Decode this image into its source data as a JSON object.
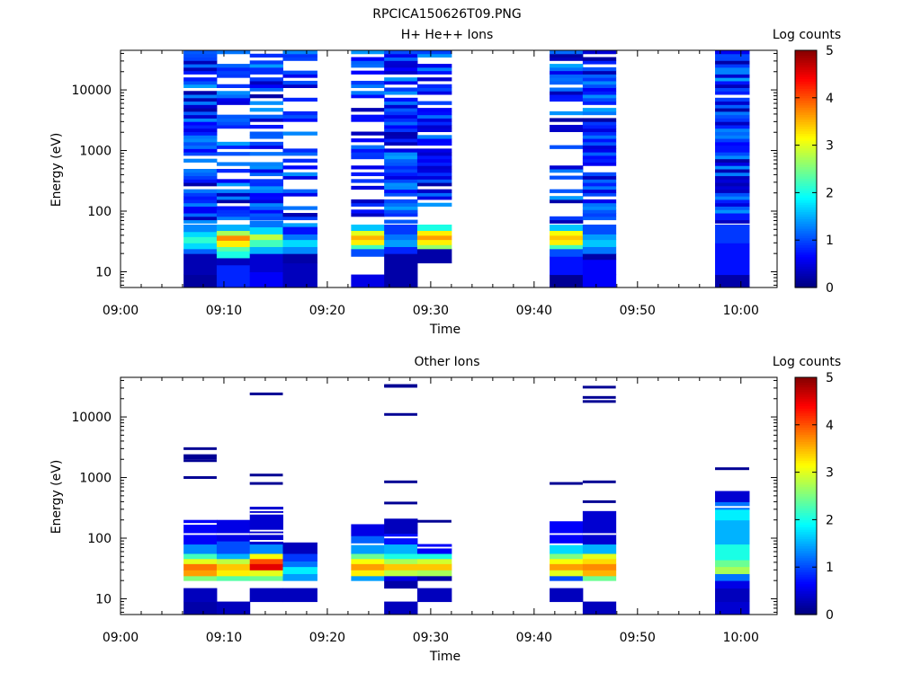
{
  "page_title": "RPCICA150626T09.PNG",
  "chart_data": [
    {
      "type": "heatmap",
      "title": "H+ He++ Ions",
      "xlabel": "Time",
      "ylabel": "Energy (eV)",
      "x_ticks": [
        "09:00",
        "09:10",
        "09:20",
        "09:30",
        "09:40",
        "09:50",
        "10:00"
      ],
      "x_range_minutes": [
        0,
        63.5
      ],
      "y_scale": "log",
      "y_ticks": [
        "10",
        "100",
        "1000",
        "10000"
      ],
      "y_range": [
        5.5,
        45000
      ],
      "colorbar": {
        "label": "Log counts",
        "range": [
          0,
          5
        ],
        "ticks": [
          "0",
          "1",
          "2",
          "3",
          "4",
          "5"
        ],
        "colormap": "jet"
      },
      "columns": [
        {
          "t0": 6.1,
          "t1": 9.3,
          "seed": 11,
          "bands": [
            [
              5.5,
              9,
              0.15
            ],
            [
              9,
              20,
              0.25
            ],
            [
              20,
              24,
              1.1
            ],
            [
              24,
              30,
              1.7
            ],
            [
              30,
              38,
              2.1
            ],
            [
              38,
              46,
              1.7
            ],
            [
              46,
              60,
              1.3
            ]
          ],
          "gaps": 0.12
        },
        {
          "t0": 9.3,
          "t1": 12.5,
          "seed": 23,
          "bands": [
            [
              5.5,
              13,
              0.8
            ],
            [
              13,
              17,
              0.3
            ],
            [
              17,
              22,
              2.0
            ],
            [
              22,
              26,
              2.3
            ],
            [
              26,
              33,
              3.2
            ],
            [
              33,
              40,
              3.7
            ],
            [
              40,
              48,
              2.7
            ],
            [
              48,
              60,
              1.5
            ]
          ],
          "gaps": 0.45
        },
        {
          "t0": 12.5,
          "t1": 15.7,
          "seed": 37,
          "bands": [
            [
              5.5,
              10,
              0.6
            ],
            [
              10,
              20,
              0.4
            ],
            [
              20,
              26,
              1.5
            ],
            [
              26,
              34,
              2.2
            ],
            [
              34,
              42,
              2.8
            ],
            [
              42,
              55,
              1.7
            ],
            [
              55,
              70,
              1.2
            ]
          ],
          "gaps": 0.3
        },
        {
          "t0": 15.7,
          "t1": 19.0,
          "seed": 41,
          "bands": [
            [
              5.5,
              9,
              0.3
            ],
            [
              9,
              14,
              0.3
            ],
            [
              14,
              20,
              0.2
            ],
            [
              20,
              26,
              1.3
            ],
            [
              26,
              34,
              1.7
            ],
            [
              34,
              42,
              1.2
            ],
            [
              42,
              55,
              0.7
            ]
          ],
          "gaps": 0.55
        },
        {
          "t0": 22.3,
          "t1": 25.5,
          "seed": 53,
          "bands": [
            [
              5.5,
              9,
              0.5
            ],
            [
              18,
              24,
              1.0
            ],
            [
              24,
              28,
              2.2
            ],
            [
              28,
              34,
              3.2
            ],
            [
              34,
              40,
              3.5
            ],
            [
              40,
              48,
              3.0
            ],
            [
              48,
              60,
              1.6
            ]
          ],
          "gaps": 0.5
        },
        {
          "t0": 25.5,
          "t1": 28.7,
          "seed": 61,
          "bands": [
            [
              5.5,
              20,
              0.2
            ],
            [
              20,
              26,
              0.8
            ],
            [
              26,
              34,
              1.4
            ],
            [
              34,
              42,
              1.2
            ],
            [
              42,
              60,
              0.9
            ]
          ],
          "gaps": 0.15
        },
        {
          "t0": 28.7,
          "t1": 32.0,
          "seed": 71,
          "bands": [
            [
              14,
              24,
              0.2
            ],
            [
              24,
              28,
              2.6
            ],
            [
              28,
              34,
              3.2
            ],
            [
              34,
              40,
              3.6
            ],
            [
              40,
              48,
              3.2
            ],
            [
              48,
              60,
              2.0
            ]
          ],
          "gaps": 0.35
        },
        {
          "t0": 41.5,
          "t1": 44.7,
          "seed": 83,
          "bands": [
            [
              5.5,
              9,
              0.1
            ],
            [
              9,
              18,
              0.7
            ],
            [
              18,
              24,
              1.0
            ],
            [
              24,
              28,
              2.2
            ],
            [
              28,
              34,
              3.2
            ],
            [
              34,
              40,
              3.4
            ],
            [
              40,
              48,
              3.1
            ],
            [
              48,
              60,
              1.6
            ]
          ],
          "gaps": 0.45
        },
        {
          "t0": 44.7,
          "t1": 47.9,
          "seed": 97,
          "bands": [
            [
              5.5,
              9,
              0.6
            ],
            [
              9,
              16,
              0.6
            ],
            [
              16,
              20,
              0.2
            ],
            [
              20,
              26,
              1.2
            ],
            [
              26,
              34,
              1.6
            ],
            [
              34,
              42,
              1.4
            ],
            [
              42,
              60,
              1.0
            ]
          ],
          "gaps": 0.15
        },
        {
          "t0": 57.5,
          "t1": 60.8,
          "seed": 101,
          "bands": [
            [
              5.5,
              9,
              0.2
            ],
            [
              9,
              30,
              0.7
            ],
            [
              30,
              60,
              0.9
            ]
          ],
          "gaps": 0.05
        }
      ]
    },
    {
      "type": "heatmap",
      "title": "Other Ions",
      "xlabel": "Time",
      "ylabel": "Energy (eV)",
      "x_ticks": [
        "09:00",
        "09:10",
        "09:20",
        "09:30",
        "09:40",
        "09:50",
        "10:00"
      ],
      "x_range_minutes": [
        0,
        63.5
      ],
      "y_scale": "log",
      "y_ticks": [
        "10",
        "100",
        "1000",
        "10000"
      ],
      "y_range": [
        5.5,
        45000
      ],
      "colorbar": {
        "label": "Log counts",
        "range": [
          0,
          5
        ],
        "ticks": [
          "0",
          "1",
          "2",
          "3",
          "4",
          "5"
        ],
        "colormap": "jet"
      },
      "columns": [
        {
          "t0": 6.1,
          "t1": 9.3,
          "seed": 13,
          "bands": [
            [
              5.5,
              9,
              0.2
            ],
            [
              9,
              15,
              0.3
            ],
            [
              20,
              24,
              2.5
            ],
            [
              24,
              30,
              3.6
            ],
            [
              30,
              38,
              3.8
            ],
            [
              38,
              46,
              3.0
            ],
            [
              46,
              56,
              2.2
            ],
            [
              56,
              80,
              1.3
            ],
            [
              80,
              200,
              0.6
            ]
          ],
          "gaps": 0.25,
          "lines": [
            1000,
            1900,
            2100,
            2300,
            3000
          ]
        },
        {
          "t0": 9.3,
          "t1": 12.5,
          "seed": 29,
          "bands": [
            [
              5.5,
              9,
              0.3
            ],
            [
              20,
              24,
              2.3
            ],
            [
              24,
              30,
              3.2
            ],
            [
              30,
              38,
              3.4
            ],
            [
              38,
              46,
              2.8
            ],
            [
              46,
              56,
              1.5
            ],
            [
              56,
              90,
              1.0
            ],
            [
              90,
              200,
              0.5
            ]
          ],
          "gaps": 0.3,
          "lines": []
        },
        {
          "t0": 12.5,
          "t1": 15.7,
          "seed": 31,
          "bands": [
            [
              9,
              15,
              0.3
            ],
            [
              20,
              24,
              2.4
            ],
            [
              24,
              30,
              3.0
            ],
            [
              30,
              38,
              4.5
            ],
            [
              38,
              46,
              4.0
            ],
            [
              46,
              56,
              3.1
            ],
            [
              56,
              80,
              1.3
            ],
            [
              80,
              330,
              0.4
            ]
          ],
          "gaps": 0.3,
          "lines": [
            800,
            1100,
            24000
          ]
        },
        {
          "t0": 15.7,
          "t1": 19.0,
          "seed": 43,
          "bands": [
            [
              9,
              15,
              0.3
            ],
            [
              20,
              26,
              1.4
            ],
            [
              26,
              34,
              1.8
            ],
            [
              34,
              42,
              1.2
            ],
            [
              42,
              56,
              0.9
            ],
            [
              56,
              85,
              0.3
            ]
          ],
          "gaps": 0.3,
          "lines": []
        },
        {
          "t0": 22.3,
          "t1": 25.5,
          "seed": 59,
          "bands": [
            [
              20,
              24,
              1.4
            ],
            [
              24,
              30,
              3.2
            ],
            [
              30,
              38,
              3.6
            ],
            [
              38,
              46,
              3.1
            ],
            [
              46,
              56,
              2.4
            ],
            [
              56,
              80,
              1.4
            ],
            [
              80,
              110,
              1.1
            ],
            [
              110,
              170,
              0.5
            ]
          ],
          "gaps": 0.3,
          "lines": []
        },
        {
          "t0": 25.5,
          "t1": 28.7,
          "seed": 67,
          "bands": [
            [
              5.5,
              9,
              0.3
            ],
            [
              15,
              20,
              0.2
            ],
            [
              20,
              24,
              0.5
            ],
            [
              24,
              30,
              2.8
            ],
            [
              30,
              38,
              3.4
            ],
            [
              38,
              46,
              2.7
            ],
            [
              46,
              56,
              2.0
            ],
            [
              56,
              80,
              1.5
            ],
            [
              80,
              120,
              0.7
            ],
            [
              120,
              210,
              0.3
            ]
          ],
          "gaps": 0.2,
          "lines": [
            380,
            850,
            11000,
            32000,
            33000
          ]
        },
        {
          "t0": 28.7,
          "t1": 32.0,
          "seed": 73,
          "bands": [
            [
              9,
              15,
              0.3
            ],
            [
              20,
              24,
              0.2
            ],
            [
              24,
              30,
              2.7
            ],
            [
              30,
              38,
              3.4
            ],
            [
              38,
              46,
              2.9
            ],
            [
              46,
              56,
              2.0
            ],
            [
              56,
              80,
              0.6
            ]
          ],
          "gaps": 0.3,
          "lines": [
            190
          ]
        },
        {
          "t0": 41.5,
          "t1": 44.7,
          "seed": 89,
          "bands": [
            [
              9,
              15,
              0.3
            ],
            [
              20,
              24,
              1.0
            ],
            [
              24,
              30,
              3.0
            ],
            [
              30,
              38,
              3.6
            ],
            [
              38,
              46,
              3.1
            ],
            [
              46,
              56,
              2.5
            ],
            [
              56,
              80,
              1.7
            ],
            [
              80,
              190,
              0.6
            ]
          ],
          "gaps": 0.3,
          "lines": [
            800
          ]
        },
        {
          "t0": 44.7,
          "t1": 47.9,
          "seed": 103,
          "bands": [
            [
              5.5,
              9,
              0.3
            ],
            [
              20,
              24,
              2.4
            ],
            [
              24,
              30,
              3.5
            ],
            [
              30,
              38,
              3.7
            ],
            [
              38,
              46,
              3.3
            ],
            [
              46,
              56,
              3.0
            ],
            [
              56,
              80,
              1.5
            ],
            [
              80,
              280,
              0.4
            ]
          ],
          "gaps": 0.3,
          "lines": [
            400,
            850,
            18000,
            21000,
            31000
          ]
        },
        {
          "t0": 57.5,
          "t1": 60.8,
          "seed": 107,
          "bands": [
            [
              5.5,
              9,
              0.4
            ],
            [
              9,
              15,
              0.3
            ],
            [
              15,
              20,
              0.5
            ],
            [
              20,
              26,
              1.2
            ],
            [
              26,
              34,
              2.7
            ],
            [
              34,
              44,
              2.4
            ],
            [
              44,
              80,
              2.0
            ],
            [
              80,
              200,
              1.5
            ],
            [
              200,
              300,
              1.8
            ],
            [
              300,
              400,
              1.2
            ],
            [
              400,
              600,
              0.4
            ]
          ],
          "gaps": 0.05,
          "lines": [
            1400
          ]
        }
      ]
    }
  ]
}
